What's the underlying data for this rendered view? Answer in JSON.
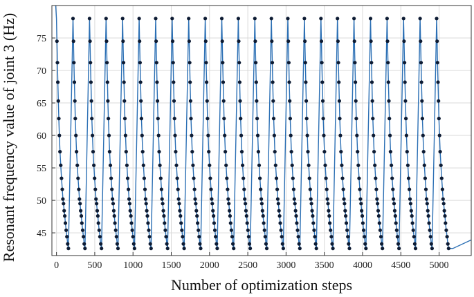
{
  "chart_data": {
    "type": "line",
    "title": "",
    "xlabel": "Number of optimization steps",
    "ylabel": "Resonant frequency value of joint 3 (Hz)",
    "xlim": [
      -60,
      5420
    ],
    "ylim": [
      41.5,
      80.0
    ],
    "xticks": [
      0,
      500,
      1000,
      1500,
      2000,
      2500,
      3000,
      3500,
      4000,
      4500,
      5000
    ],
    "yticks": [
      45,
      50,
      55,
      60,
      65,
      70,
      75
    ],
    "grid": true,
    "colors": {
      "line": "#2b6fb4",
      "marker": "#0d1b33",
      "grid": "#d9d9d9",
      "axes": "#333333"
    },
    "cycle_start_x": 0,
    "cycle_length": 216,
    "cycle_count": 24,
    "cycle_peak_y": 78.0,
    "cycle_profile": [
      {
        "dx": 0,
        "y": 78.0
      },
      {
        "dx": 6,
        "y": 74.5
      },
      {
        "dx": 12,
        "y": 71.2
      },
      {
        "dx": 18,
        "y": 68.2
      },
      {
        "dx": 24,
        "y": 65.3
      },
      {
        "dx": 30,
        "y": 62.6
      },
      {
        "dx": 38,
        "y": 60.0
      },
      {
        "dx": 46,
        "y": 57.5
      },
      {
        "dx": 56,
        "y": 55.4
      },
      {
        "dx": 66,
        "y": 53.4
      },
      {
        "dx": 76,
        "y": 51.7
      },
      {
        "dx": 84,
        "y": 50.2
      },
      {
        "dx": 92,
        "y": 49.5
      },
      {
        "dx": 100,
        "y": 48.4
      },
      {
        "dx": 108,
        "y": 47.6
      },
      {
        "dx": 116,
        "y": 46.5
      },
      {
        "dx": 126,
        "y": 45.4
      },
      {
        "dx": 136,
        "y": 44.4
      },
      {
        "dx": 146,
        "y": 43.3
      },
      {
        "dx": 156,
        "y": 42.6
      }
    ],
    "series": [
      {
        "values_head": [
          {
            "x": -10,
            "y": 80.0
          },
          {
            "x": 0,
            "y": 78.0
          }
        ],
        "values_tail": [
          {
            "x": 5180,
            "y": 42.6
          },
          {
            "x": 5420,
            "y": 43.9
          }
        ]
      }
    ]
  }
}
